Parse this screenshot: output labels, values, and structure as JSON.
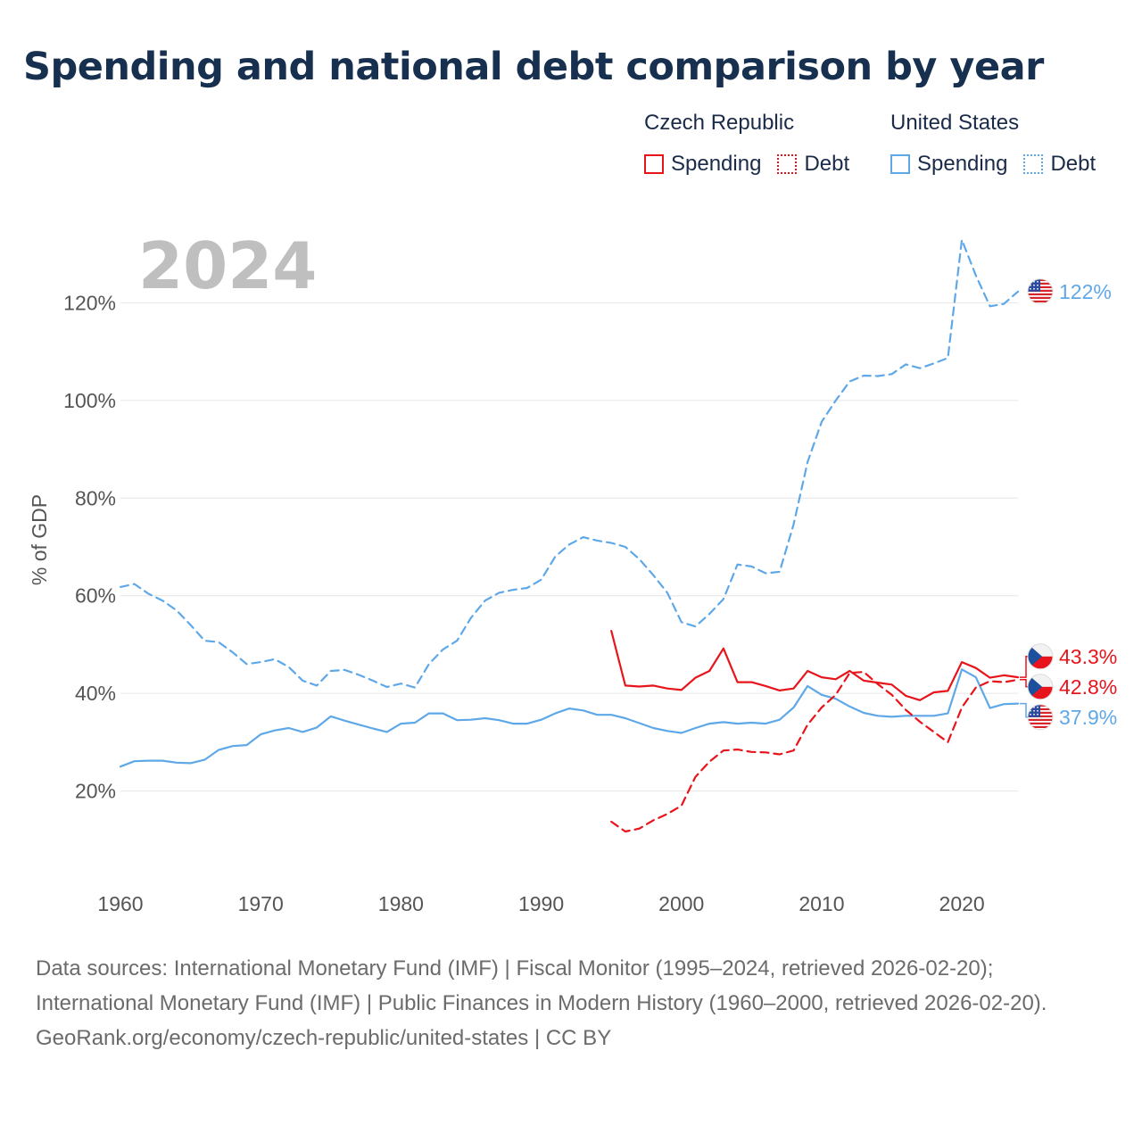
{
  "title": "Spending and national debt comparison by year",
  "legend": {
    "groups": [
      {
        "title": "Czech Republic",
        "spending_label": "Spending",
        "debt_label": "Debt"
      },
      {
        "title": "United States",
        "spending_label": "Spending",
        "debt_label": "Debt"
      }
    ]
  },
  "colors": {
    "czech": "#e8141c",
    "us": "#5fa8e8",
    "year_label": "#bfbfbf",
    "grid": "#e6e6e6",
    "tick": "#555555"
  },
  "chart_data": {
    "type": "line",
    "year_label": "2024",
    "ylabel": "% of GDP",
    "xlim": [
      1960,
      2024
    ],
    "ylim": [
      0,
      140
    ],
    "x_ticks": [
      1960,
      1970,
      1980,
      1990,
      2000,
      2010,
      2020
    ],
    "y_ticks": [
      20,
      40,
      60,
      80,
      100,
      120
    ],
    "y_tick_labels": [
      "20%",
      "40%",
      "60%",
      "80%",
      "100%",
      "120%"
    ],
    "series": [
      {
        "name": "United States Debt",
        "country": "United States",
        "metric": "Debt",
        "style": "dashed",
        "color": "#5fa8e8",
        "start_year": 1960,
        "values": [
          61.8,
          62.4,
          60.4,
          59.0,
          57.0,
          54.0,
          50.8,
          50.5,
          48.4,
          46.0,
          46.4,
          47.0,
          45.4,
          42.6,
          41.6,
          44.6,
          44.8,
          43.8,
          42.6,
          41.3,
          42.0,
          41.2,
          46.0,
          49.0,
          50.8,
          55.5,
          59.0,
          60.6,
          61.2,
          61.6,
          63.3,
          68.0,
          70.5,
          72.0,
          71.3,
          70.8,
          70.0,
          67.5,
          64.2,
          60.6,
          54.6,
          53.7,
          56.3,
          59.3,
          66.4,
          66.0,
          64.6,
          64.9,
          74.6,
          87.4,
          95.6,
          100.0,
          103.9,
          105.1,
          105.0,
          105.4,
          107.4,
          106.6,
          107.6,
          108.7,
          132.9,
          125.6,
          119.3,
          119.8,
          122.3
        ]
      },
      {
        "name": "United States Spending",
        "country": "United States",
        "metric": "Spending",
        "style": "solid",
        "color": "#5fa8e8",
        "start_year": 1960,
        "values": [
          25.0,
          26.1,
          26.2,
          26.2,
          25.8,
          25.7,
          26.4,
          28.4,
          29.2,
          29.4,
          31.6,
          32.4,
          32.9,
          32.1,
          33.0,
          35.3,
          34.4,
          33.6,
          32.8,
          32.1,
          33.8,
          34.0,
          35.9,
          35.9,
          34.5,
          34.6,
          34.9,
          34.5,
          33.8,
          33.8,
          34.6,
          35.9,
          36.9,
          36.5,
          35.6,
          35.6,
          34.9,
          33.9,
          32.9,
          32.3,
          31.9,
          32.9,
          33.8,
          34.1,
          33.8,
          34.0,
          33.8,
          34.6,
          37.1,
          41.5,
          39.7,
          38.9,
          37.3,
          36.0,
          35.4,
          35.2,
          35.4,
          35.4,
          35.4,
          35.9,
          44.9,
          43.3,
          37.0,
          37.8,
          37.9
        ]
      },
      {
        "name": "Czech Republic Spending",
        "country": "Czech Republic",
        "metric": "Spending",
        "style": "solid",
        "color": "#e8141c",
        "start_year": 1995,
        "values": [
          52.8,
          41.6,
          41.4,
          41.6,
          41.0,
          40.7,
          43.2,
          44.6,
          49.2,
          42.3,
          42.3,
          41.5,
          40.6,
          41.0,
          44.6,
          43.3,
          42.9,
          44.6,
          42.6,
          42.2,
          41.8,
          39.5,
          38.6,
          40.2,
          40.5,
          46.4,
          45.2,
          43.2,
          43.7,
          43.3
        ]
      },
      {
        "name": "Czech Republic Debt",
        "country": "Czech Republic",
        "metric": "Debt",
        "style": "dashed",
        "color": "#e8141c",
        "start_year": 1995,
        "values": [
          13.7,
          11.7,
          12.3,
          14.0,
          15.3,
          17.0,
          22.9,
          26.0,
          28.3,
          28.5,
          28.0,
          27.9,
          27.5,
          28.3,
          33.6,
          37.1,
          39.7,
          44.2,
          44.4,
          41.9,
          39.7,
          36.6,
          34.2,
          32.1,
          30.0,
          37.1,
          41.2,
          42.5,
          42.3,
          42.8
        ]
      }
    ],
    "end_labels": [
      {
        "series": "United States Debt",
        "text": "122%",
        "color": "#5fa8e8"
      },
      {
        "series": "Czech Republic Spending",
        "text": "43.3%",
        "color": "#e8141c"
      },
      {
        "series": "Czech Republic Debt",
        "text": "42.8%",
        "color": "#e8141c"
      },
      {
        "series": "United States Spending",
        "text": "37.9%",
        "color": "#5fa8e8"
      }
    ]
  },
  "footer": {
    "sources": "Data sources: International Monetary Fund (IMF) | Fiscal Monitor (1995–2024, retrieved 2026-02-20); International Monetary Fund (IMF) | Public Finances in Modern History (1960–2000, retrieved 2026-02-20).",
    "attribution": "GeoRank.org/economy/czech-republic/united-states | CC BY"
  }
}
